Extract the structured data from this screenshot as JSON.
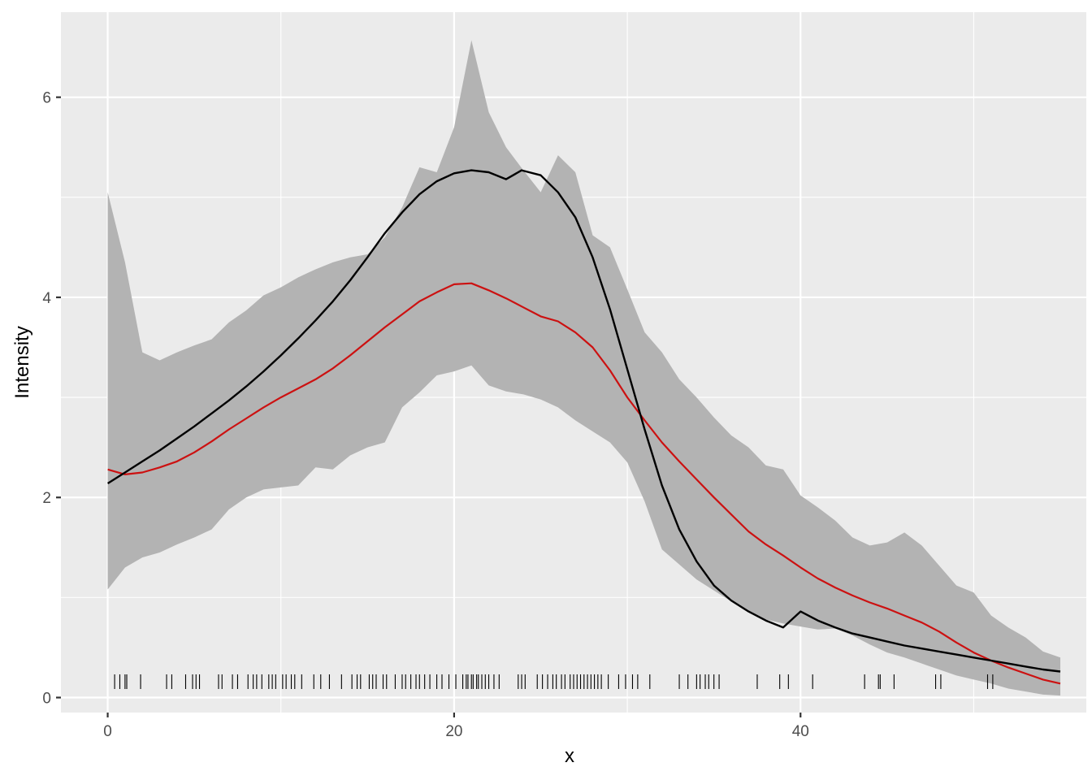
{
  "chart_data": {
    "type": "line",
    "title": "",
    "xlabel": "x",
    "ylabel": "Intensity",
    "xlim": [
      -2.7,
      56.5
    ],
    "ylim": [
      -0.15,
      6.85
    ],
    "x_ticks": [
      0,
      20,
      40
    ],
    "x_tick_labels": [
      "0",
      "20",
      "40"
    ],
    "y_ticks": [
      0,
      2,
      4,
      6
    ],
    "y_tick_labels": [
      "0",
      "2",
      "4",
      "6"
    ],
    "grid": true,
    "legend": "none",
    "colors": {
      "panel_background": "#ebebeb",
      "grid": "#ffffff",
      "band": "#b3b3b3",
      "estimate": "#cc1111",
      "true_intensity": "#000000",
      "rug": "#000000"
    },
    "band": {
      "x": [
        0,
        1,
        2,
        3,
        4,
        5,
        6,
        7,
        8,
        9,
        10,
        11,
        12,
        13,
        14,
        15,
        16,
        17,
        18,
        19,
        20,
        21,
        22,
        23,
        24,
        25,
        26,
        27,
        28,
        29,
        30,
        31,
        32,
        33,
        34,
        35,
        36,
        37,
        38,
        39,
        40,
        41,
        42,
        43,
        44,
        45,
        46,
        47,
        48,
        49,
        50,
        51,
        52,
        53,
        54,
        55
      ],
      "upper": [
        5.05,
        4.35,
        3.45,
        3.37,
        3.45,
        3.52,
        3.58,
        3.75,
        3.87,
        4.02,
        4.1,
        4.2,
        4.28,
        4.35,
        4.4,
        4.43,
        4.6,
        4.9,
        5.3,
        5.25,
        5.7,
        6.57,
        5.85,
        5.5,
        5.27,
        5.05,
        5.42,
        5.25,
        4.62,
        4.5,
        4.08,
        3.65,
        3.45,
        3.18,
        3.0,
        2.8,
        2.62,
        2.5,
        2.32,
        2.28,
        2.02,
        1.9,
        1.77,
        1.6,
        1.52,
        1.55,
        1.65,
        1.52,
        1.32,
        1.12,
        1.05,
        0.82,
        0.7,
        0.6,
        0.46,
        0.4
      ],
      "lower": [
        1.08,
        1.3,
        1.4,
        1.45,
        1.53,
        1.6,
        1.68,
        1.88,
        2.0,
        2.08,
        2.1,
        2.12,
        2.3,
        2.28,
        2.42,
        2.5,
        2.55,
        2.9,
        3.05,
        3.22,
        3.26,
        3.32,
        3.12,
        3.06,
        3.03,
        2.98,
        2.9,
        2.77,
        2.66,
        2.55,
        2.35,
        1.96,
        1.48,
        1.33,
        1.18,
        1.07,
        0.96,
        0.85,
        0.78,
        0.74,
        0.71,
        0.68,
        0.69,
        0.62,
        0.53,
        0.45,
        0.4,
        0.34,
        0.28,
        0.22,
        0.18,
        0.14,
        0.09,
        0.06,
        0.03,
        0.02
      ]
    },
    "series": [
      {
        "x": [
          0,
          1,
          2,
          3,
          4,
          5,
          6,
          7,
          8,
          9,
          10,
          11,
          12,
          13,
          14,
          15,
          16,
          17,
          18,
          19,
          20,
          21,
          22,
          23,
          24,
          25,
          26,
          27,
          28,
          29,
          30,
          31,
          32,
          33,
          34,
          35,
          36,
          37,
          38,
          39,
          40,
          41,
          42,
          43,
          44,
          45,
          46,
          47,
          48,
          49,
          50,
          51,
          52,
          53,
          54,
          55
        ],
        "values": [
          2.28,
          2.23,
          2.25,
          2.3,
          2.36,
          2.45,
          2.56,
          2.68,
          2.79,
          2.9,
          3.0,
          3.09,
          3.18,
          3.29,
          3.42,
          3.56,
          3.7,
          3.83,
          3.96,
          4.05,
          4.13,
          4.14,
          4.07,
          3.99,
          3.9,
          3.81,
          3.76,
          3.65,
          3.5,
          3.27,
          3.0,
          2.77,
          2.55,
          2.36,
          2.18,
          2.0,
          1.83,
          1.66,
          1.53,
          1.42,
          1.3,
          1.19,
          1.1,
          1.02,
          0.95,
          0.89,
          0.82,
          0.75,
          0.66,
          0.55,
          0.45,
          0.37,
          0.3,
          0.24,
          0.18,
          0.14
        ]
      },
      {
        "x": [
          0,
          1,
          2,
          3,
          4,
          5,
          6,
          7,
          8,
          9,
          10,
          11,
          12,
          13,
          14,
          15,
          16,
          17,
          18,
          19,
          20,
          21,
          22,
          23,
          23.9,
          25,
          26,
          27,
          28,
          29,
          30,
          31,
          32,
          33,
          34,
          35,
          36,
          37,
          38,
          39,
          40,
          41,
          42,
          43,
          44,
          45,
          46,
          47,
          48,
          49,
          50,
          51,
          52,
          53,
          54,
          55
        ],
        "values": [
          2.14,
          2.25,
          2.36,
          2.47,
          2.59,
          2.71,
          2.84,
          2.97,
          3.11,
          3.26,
          3.42,
          3.59,
          3.77,
          3.96,
          4.17,
          4.4,
          4.64,
          4.85,
          5.03,
          5.16,
          5.24,
          5.27,
          5.25,
          5.18,
          5.27,
          5.22,
          5.05,
          4.8,
          4.4,
          3.88,
          3.28,
          2.68,
          2.12,
          1.68,
          1.36,
          1.12,
          0.97,
          0.86,
          0.77,
          0.7,
          0.86,
          0.77,
          0.7,
          0.64,
          0.6,
          0.56,
          0.52,
          0.49,
          0.46,
          0.43,
          0.4,
          0.37,
          0.34,
          0.31,
          0.28,
          0.26
        ]
      }
    ],
    "rug_x": [
      0.4,
      0.7,
      1.0,
      1.1,
      1.9,
      3.4,
      3.7,
      4.5,
      4.9,
      5.1,
      5.3,
      6.4,
      6.6,
      7.2,
      7.5,
      8.1,
      8.4,
      8.6,
      8.9,
      9.3,
      9.5,
      9.7,
      10.1,
      10.3,
      10.6,
      10.8,
      11.2,
      11.9,
      12.3,
      12.8,
      13.5,
      14.1,
      14.4,
      14.6,
      15.1,
      15.3,
      15.5,
      15.9,
      16.1,
      16.6,
      17.0,
      17.2,
      17.5,
      17.8,
      18.0,
      18.3,
      18.6,
      19.0,
      19.3,
      19.7,
      20.1,
      20.5,
      20.7,
      20.8,
      21.0,
      21.1,
      21.3,
      21.4,
      21.6,
      21.8,
      22.0,
      22.3,
      22.6,
      23.7,
      23.9,
      24.1,
      24.8,
      25.1,
      25.4,
      25.7,
      25.9,
      26.2,
      26.4,
      26.7,
      26.9,
      27.1,
      27.3,
      27.5,
      27.7,
      27.9,
      28.1,
      28.3,
      28.5,
      28.9,
      29.5,
      29.9,
      30.3,
      30.6,
      31.3,
      33.0,
      33.5,
      34.0,
      34.2,
      34.5,
      34.7,
      35.0,
      35.3,
      37.5,
      38.8,
      39.3,
      40.7,
      43.7,
      44.5,
      44.6,
      45.4,
      47.8,
      48.1,
      50.8,
      51.1
    ]
  }
}
